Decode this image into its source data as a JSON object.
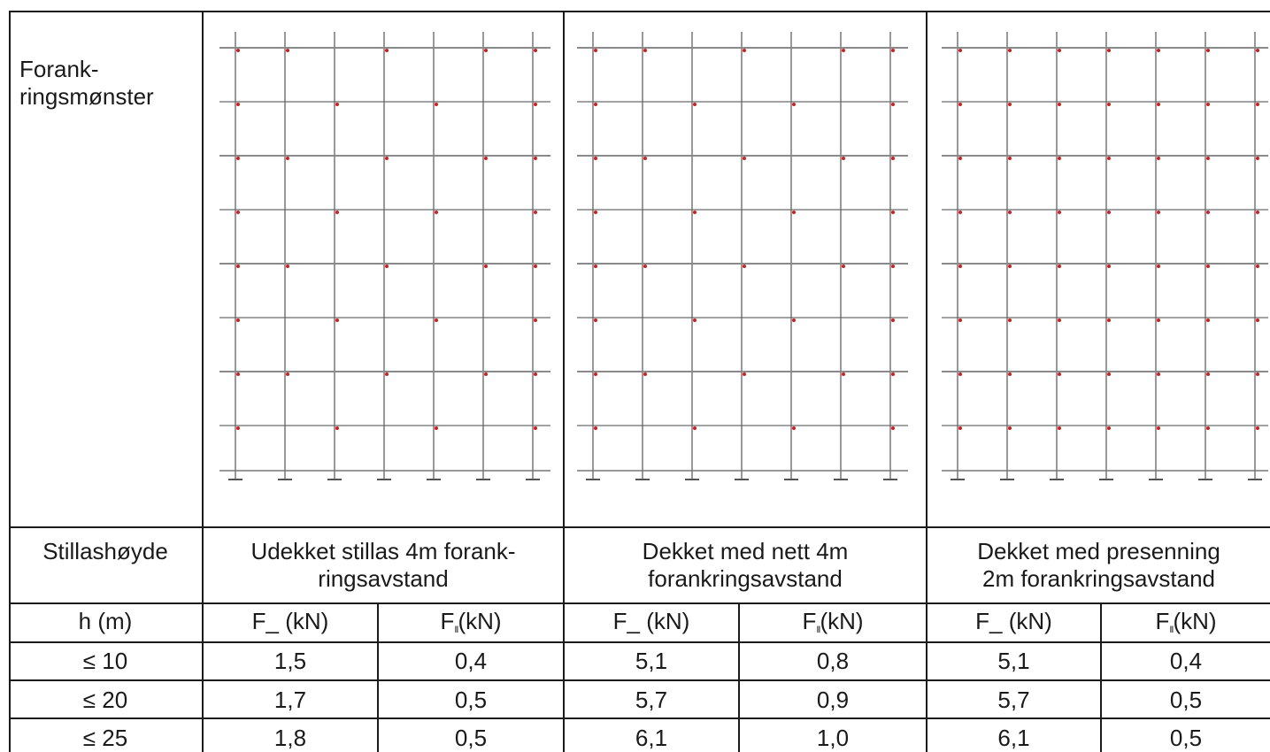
{
  "pattern_label": [
    "Forank-",
    "ringsmønster"
  ],
  "height_label": "Stillashøyde",
  "groups": [
    {
      "title_line1": "Udekket stillas 4m forank-",
      "title_line2": "ringsavstand",
      "diagram": {
        "levels": 8,
        "bays": 6,
        "anchor_pattern": "alternating",
        "anchor_color": "#d21d1d"
      }
    },
    {
      "title_line1": "Dekket med nett 4m",
      "title_line2": "forankringsavstand",
      "diagram": {
        "levels": 8,
        "bays": 6,
        "anchor_pattern": "alternating",
        "anchor_color": "#d21d1d"
      }
    },
    {
      "title_line1": "Dekket med presenning",
      "title_line2": "2m forankringsavstand",
      "diagram": {
        "levels": 8,
        "bays": 6,
        "anchor_pattern": "all",
        "anchor_color": "#d21d1d"
      }
    }
  ],
  "table": {
    "h_header": "h (m)",
    "f_perp_main": "F_",
    "f_par_main": "F",
    "f_par_sub": "II",
    "unit": " (kN)",
    "unit_tight": "(kN)",
    "rows": [
      {
        "h": "≤ 10",
        "values": [
          "1,5",
          "0,4",
          "5,1",
          "0,8",
          "5,1",
          "0,4"
        ]
      },
      {
        "h": "≤ 20",
        "values": [
          "1,7",
          "0,5",
          "5,7",
          "0,9",
          "5,7",
          "0,5"
        ]
      },
      {
        "h": "≤ 25",
        "values": [
          "1,8",
          "0,5",
          "6,1",
          "1,0",
          "6,1",
          "0,5"
        ]
      }
    ]
  }
}
